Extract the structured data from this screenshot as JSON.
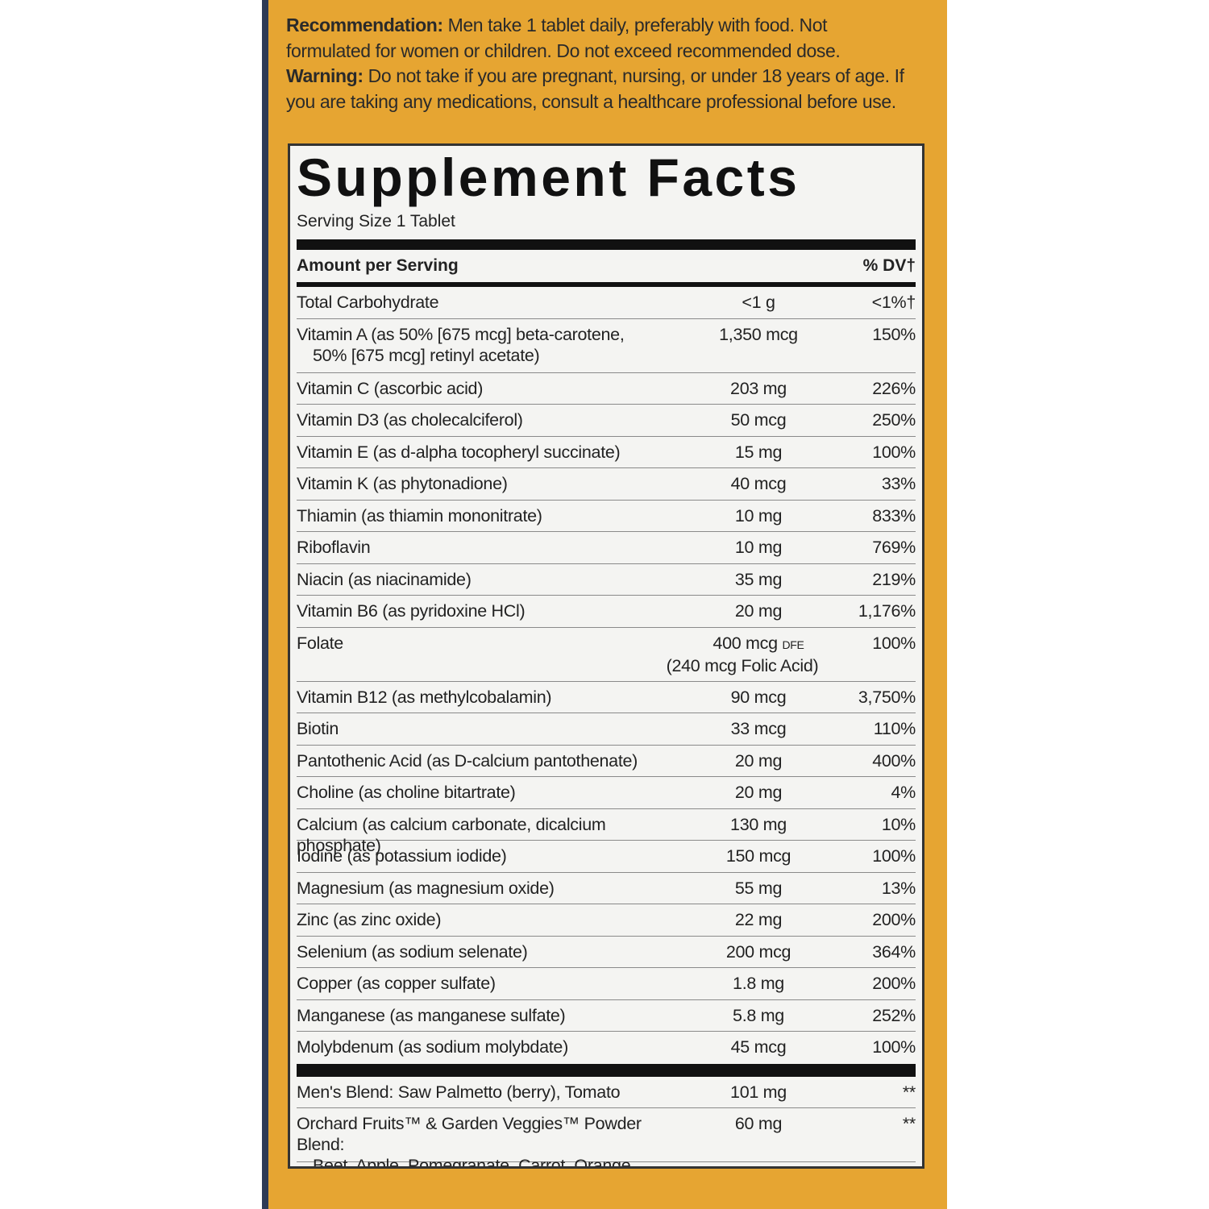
{
  "notice": {
    "recommendation_label": "Recommendation:",
    "recommendation": "Men take 1 tablet daily, preferably with food. Not formulated for women or children. Do not exceed recommended dose.",
    "warning_label": "Warning:",
    "warning": "Do not take if you are pregnant, nursing, or under 18 years of age. If you are taking any medications, consult a healthcare professional before use."
  },
  "facts": {
    "title": "Supplement Facts",
    "serving_size": "Serving Size 1 Tablet",
    "header": {
      "amount": "Amount per Serving",
      "dv": "% DV†"
    },
    "rows": [
      {
        "name": "Total Carbohydrate",
        "amount": "<1 g",
        "dv": "<1%†"
      },
      {
        "name": "Vitamin A (as 50% [675 mcg] beta-carotene,",
        "name_cont": "50% [675 mcg] retinyl acetate)",
        "amount": "1,350 mcg",
        "dv": "150%"
      },
      {
        "name": "Vitamin C (ascorbic acid)",
        "amount": "203 mg",
        "dv": "226%"
      },
      {
        "name": "Vitamin D3 (as cholecalciferol)",
        "amount": "50 mcg",
        "dv": "250%"
      },
      {
        "name": "Vitamin E (as d-alpha tocopheryl succinate)",
        "amount": "15 mg",
        "dv": "100%"
      },
      {
        "name": "Vitamin K (as phytonadione)",
        "amount": "40 mcg",
        "dv": "33%"
      },
      {
        "name": "Thiamin (as thiamin mononitrate)",
        "amount": "10 mg",
        "dv": "833%"
      },
      {
        "name": "Riboflavin",
        "amount": "10 mg",
        "dv": "769%"
      },
      {
        "name": "Niacin (as niacinamide)",
        "amount": "35 mg",
        "dv": "219%"
      },
      {
        "name": "Vitamin B6 (as pyridoxine HCl)",
        "amount": "20 mg",
        "dv": "1,176%"
      },
      {
        "name": "Folate",
        "amount": "400 mcg",
        "amount_unit": "DFE",
        "amount_note": "(240 mcg Folic Acid)",
        "dv": "100%"
      },
      {
        "name": "Vitamin B12 (as methylcobalamin)",
        "amount": "90 mcg",
        "dv": "3,750%"
      },
      {
        "name": "Biotin",
        "amount": "33 mcg",
        "dv": "110%"
      },
      {
        "name": "Pantothenic Acid (as D-calcium pantothenate)",
        "amount": "20 mg",
        "dv": "400%"
      },
      {
        "name": "Choline (as choline bitartrate)",
        "amount": "20 mg",
        "dv": "4%"
      },
      {
        "name": "Calcium (as calcium carbonate, dicalcium phosphate)",
        "amount": "130 mg",
        "dv": "10%"
      },
      {
        "name": "Iodine (as potassium iodide)",
        "amount": "150 mcg",
        "dv": "100%"
      },
      {
        "name": "Magnesium (as magnesium oxide)",
        "amount": "55 mg",
        "dv": "13%"
      },
      {
        "name": "Zinc (as zinc oxide)",
        "amount": "22 mg",
        "dv": "200%"
      },
      {
        "name": "Selenium (as sodium selenate)",
        "amount": "200 mcg",
        "dv": "364%"
      },
      {
        "name": "Copper (as copper sulfate)",
        "amount": "1.8 mg",
        "dv": "200%"
      },
      {
        "name": "Manganese (as manganese sulfate)",
        "amount": "5.8 mg",
        "dv": "252%"
      },
      {
        "name": "Molybdenum (as sodium molybdate)",
        "amount": "45 mcg",
        "dv": "100%"
      }
    ],
    "blends": [
      {
        "name": "Men's Blend: Saw Palmetto (berry), Tomato",
        "amount": "101 mg",
        "dv": "**"
      },
      {
        "name": "Orchard Fruits™ & Garden Veggies™ Powder Blend:",
        "name_cont": "Beet, Apple, Pomegranate, Carrot, Orange,",
        "amount": "60 mg",
        "dv": "**"
      }
    ]
  }
}
